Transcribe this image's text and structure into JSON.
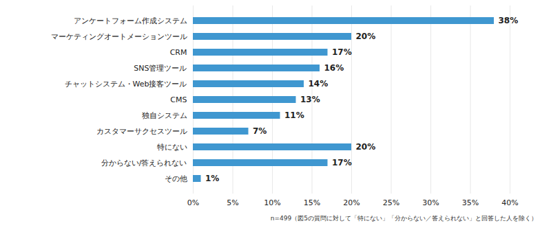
{
  "chart_data": {
    "type": "bar",
    "orientation": "horizontal",
    "categories": [
      "アンケートフォーム作成システム",
      "マーケティングオートメーションツール",
      "CRM",
      "SNS管理ツール",
      "チャットシステム・Web接客ツール",
      "CMS",
      "独自システム",
      "カスタマーサクセスツール",
      "特にない",
      "分からない/答えられない",
      "その他"
    ],
    "values": [
      38,
      20,
      17,
      16,
      14,
      13,
      11,
      7,
      20,
      17,
      1
    ],
    "value_labels": [
      "38%",
      "20%",
      "17%",
      "16%",
      "14%",
      "13%",
      "11%",
      "7%",
      "20%",
      "17%",
      "1%"
    ],
    "data_labels": true,
    "color": "#3f97d0",
    "xlim": [
      0,
      40
    ],
    "xticks": [
      {
        "value": 0,
        "label": "0%"
      },
      {
        "value": 5,
        "label": "5%"
      },
      {
        "value": 10,
        "label": "10%"
      },
      {
        "value": 15,
        "label": "15%"
      },
      {
        "value": 20,
        "label": "20%"
      },
      {
        "value": 25,
        "label": "25%"
      },
      {
        "value": 30,
        "label": "30%"
      },
      {
        "value": 35,
        "label": "35%"
      },
      {
        "value": 40,
        "label": "40%"
      }
    ],
    "grid": true,
    "caption": "n=499（図5の質問に対して「特にない」「分からない／答えられない」と回答した人を除く）"
  }
}
